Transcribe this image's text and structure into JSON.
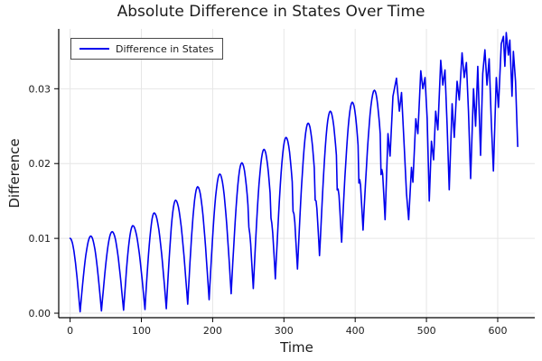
{
  "chart_data": {
    "type": "line",
    "title": "Absolute Difference in States Over Time",
    "xlabel": "Time",
    "ylabel": "Difference",
    "legend_position": "top-left",
    "grid": true,
    "xlim": [
      -16,
      652
    ],
    "ylim": [
      -0.0006,
      0.038
    ],
    "x_ticks": [
      0,
      100,
      200,
      300,
      400,
      500,
      600
    ],
    "y_ticks": [
      0,
      0.01,
      0.02,
      0.03
    ],
    "y_tick_labels": [
      "0.00",
      "0.01",
      "0.02",
      "0.03"
    ],
    "x_tick_labels": [
      "0",
      "100",
      "200",
      "300",
      "400",
      "500",
      "600"
    ],
    "series": [
      {
        "name": "Difference in States",
        "color": "#0000ee",
        "arches_format": [
          "t_valley_start",
          "v_start",
          "t_peak",
          "v_peak",
          "t_valley_end",
          "v_end",
          "descent_notch_depth"
        ],
        "arches": [
          [
            0,
            0.01,
            0,
            0.01,
            14,
            0.0002,
            0
          ],
          [
            14,
            0.0002,
            29,
            0.0103,
            44,
            0.0003,
            0
          ],
          [
            44,
            0.0003,
            59,
            0.0109,
            75,
            0.0004,
            0
          ],
          [
            75,
            0.0004,
            88,
            0.0117,
            105,
            0.0005,
            0
          ],
          [
            105,
            0.0005,
            118,
            0.0134,
            135,
            0.0006,
            0
          ],
          [
            135,
            0.0006,
            148,
            0.0151,
            165,
            0.0012,
            0
          ],
          [
            165,
            0.0012,
            179,
            0.0169,
            195,
            0.0018,
            0
          ],
          [
            195,
            0.0018,
            210,
            0.0186,
            226,
            0.0026,
            0
          ],
          [
            226,
            0.0026,
            241,
            0.0201,
            257,
            0.0033,
            0.08
          ],
          [
            257,
            0.0033,
            272,
            0.0219,
            288,
            0.0046,
            0.1
          ],
          [
            288,
            0.0046,
            303,
            0.0235,
            319,
            0.0059,
            0.13
          ],
          [
            319,
            0.0059,
            334,
            0.0254,
            350,
            0.0077,
            0.15
          ],
          [
            350,
            0.0077,
            365,
            0.027,
            381,
            0.0095,
            0.17
          ],
          [
            381,
            0.0095,
            396,
            0.0282,
            411,
            0.0111,
            0.2
          ],
          [
            411,
            0.0111,
            427,
            0.0298,
            442,
            0.0125,
            0.22
          ]
        ],
        "noisy_tail_points": [
          [
            442,
            0.0125
          ],
          [
            446,
            0.024
          ],
          [
            449,
            0.021
          ],
          [
            453,
            0.029
          ],
          [
            458,
            0.0314
          ],
          [
            462,
            0.027
          ],
          [
            465,
            0.0295
          ],
          [
            469,
            0.022
          ],
          [
            472,
            0.016
          ],
          [
            475,
            0.0125
          ],
          [
            479,
            0.0195
          ],
          [
            481,
            0.0175
          ],
          [
            485,
            0.026
          ],
          [
            488,
            0.024
          ],
          [
            492,
            0.0324
          ],
          [
            495,
            0.03
          ],
          [
            498,
            0.0315
          ],
          [
            501,
            0.026
          ],
          [
            504,
            0.015
          ],
          [
            507,
            0.023
          ],
          [
            510,
            0.0205
          ],
          [
            513,
            0.027
          ],
          [
            516,
            0.0245
          ],
          [
            520,
            0.0338
          ],
          [
            523,
            0.0305
          ],
          [
            526,
            0.0325
          ],
          [
            529,
            0.025
          ],
          [
            532,
            0.0165
          ],
          [
            536,
            0.028
          ],
          [
            539,
            0.0235
          ],
          [
            543,
            0.031
          ],
          [
            546,
            0.0285
          ],
          [
            550,
            0.0348
          ],
          [
            553,
            0.0315
          ],
          [
            556,
            0.0335
          ],
          [
            559,
            0.027
          ],
          [
            562,
            0.018
          ],
          [
            566,
            0.03
          ],
          [
            569,
            0.025
          ],
          [
            572,
            0.033
          ],
          [
            576,
            0.0211
          ],
          [
            579,
            0.032
          ],
          [
            582,
            0.0352
          ],
          [
            585,
            0.0305
          ],
          [
            588,
            0.034
          ],
          [
            591,
            0.0255
          ],
          [
            594,
            0.019
          ],
          [
            598,
            0.0315
          ],
          [
            601,
            0.0275
          ],
          [
            605,
            0.036
          ],
          [
            608,
            0.037
          ],
          [
            610,
            0.033
          ],
          [
            612,
            0.0375
          ],
          [
            615,
            0.0345
          ],
          [
            617,
            0.0365
          ],
          [
            620,
            0.029
          ],
          [
            622,
            0.035
          ],
          [
            625,
            0.031
          ],
          [
            628,
            0.0223
          ]
        ]
      }
    ],
    "colors": {
      "line": "#0000ee",
      "grid": "#e6e6e6",
      "axis": "#000000",
      "text": "#1c1c1c",
      "legend_border": "#4a4a4a",
      "background": "#ffffff"
    }
  }
}
